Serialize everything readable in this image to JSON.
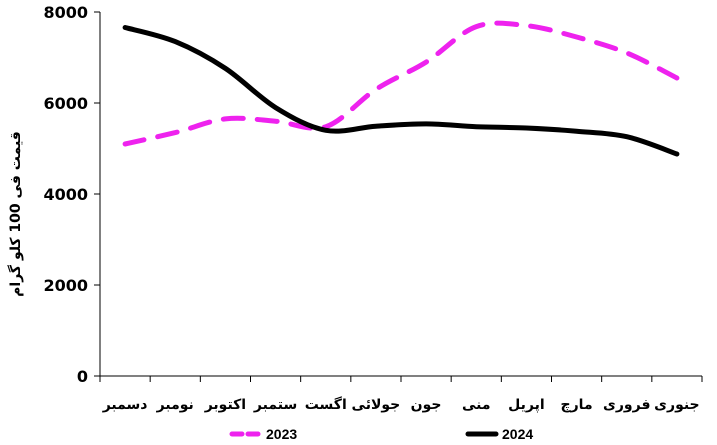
{
  "chart_data": {
    "type": "line",
    "title": "",
    "xlabel": "",
    "ylabel": "قیمت فی 100 کلو گرام",
    "ylim": [
      0,
      8000
    ],
    "yticks": [
      0,
      2000,
      4000,
      6000,
      8000
    ],
    "grid": false,
    "legend_position": "bottom",
    "categories": [
      "جنوری",
      "فروری",
      "مارچ",
      "اپریل",
      "منی",
      "جون",
      "جولائی",
      "اگست",
      "ستمبر",
      "اکتوبر",
      "نومبر",
      "دسمبر"
    ],
    "series": [
      {
        "name": "2023",
        "color": "#ee22ee",
        "dash": "dashed",
        "values": [
          6550,
          7100,
          7450,
          7700,
          7680,
          6900,
          6300,
          5480,
          5600,
          5650,
          5350,
          5100
        ]
      },
      {
        "name": "2024",
        "color": "#000000",
        "dash": "solid",
        "values": [
          4880,
          5260,
          5380,
          5450,
          5480,
          5540,
          5490,
          5400,
          5900,
          6760,
          7350,
          7660
        ]
      }
    ]
  }
}
